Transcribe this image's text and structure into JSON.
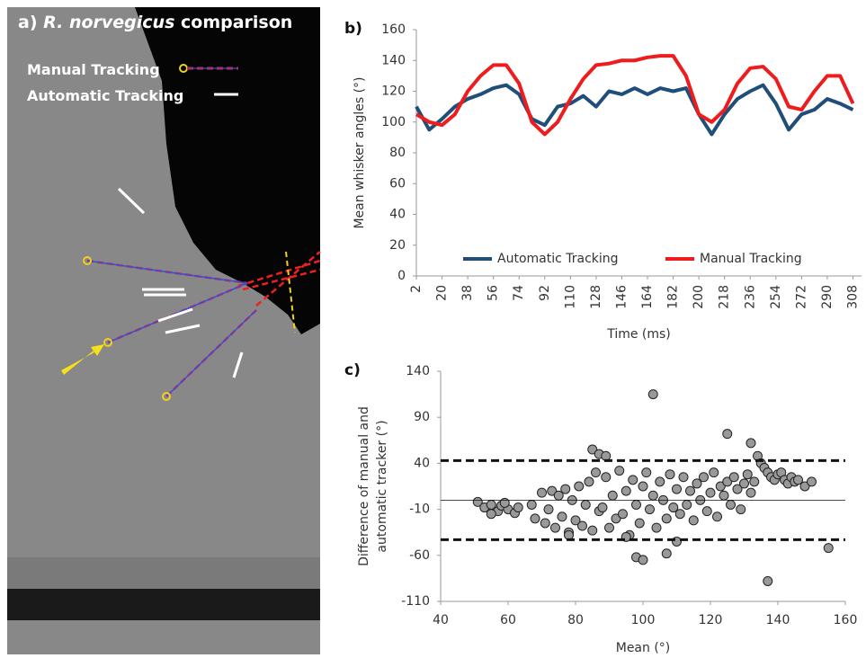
{
  "panel_a": {
    "label": "a)",
    "species": "R. norvegicus",
    "title_rest": "comparison",
    "legend": [
      "Manual Tracking",
      "Automatic Tracking"
    ]
  },
  "chart_data": [
    {
      "type": "line",
      "label": "b)",
      "x_label": "Time (ms)",
      "y_label": "Mean whisker angles (°)",
      "x": [
        2,
        11,
        20,
        29,
        38,
        47,
        56,
        65,
        74,
        83,
        92,
        101,
        110,
        119,
        128,
        137,
        146,
        155,
        164,
        173,
        182,
        191,
        200,
        209,
        218,
        227,
        236,
        245,
        254,
        263,
        272,
        281,
        290,
        299,
        308
      ],
      "series": [
        {
          "name": "Automatic Tracking",
          "color": "#1f4e79",
          "values": [
            110,
            95,
            102,
            110,
            115,
            118,
            122,
            124,
            118,
            102,
            98,
            110,
            112,
            117,
            110,
            120,
            118,
            122,
            118,
            122,
            120,
            122,
            105,
            92,
            105,
            115,
            120,
            124,
            112,
            95,
            105,
            108,
            115,
            112,
            108
          ]
        },
        {
          "name": "Manual Tracking",
          "color": "#ee1c1c",
          "values": [
            105,
            100,
            98,
            105,
            120,
            130,
            137,
            137,
            125,
            100,
            92,
            100,
            115,
            128,
            137,
            138,
            140,
            140,
            142,
            143,
            143,
            130,
            105,
            100,
            108,
            125,
            135,
            136,
            128,
            110,
            108,
            120,
            130,
            130,
            112
          ]
        }
      ],
      "xlim": [
        2,
        314
      ],
      "xticks": [
        2,
        20,
        38,
        56,
        74,
        92,
        110,
        128,
        146,
        164,
        182,
        200,
        218,
        236,
        254,
        272,
        290,
        308
      ],
      "ylim": [
        0,
        160
      ],
      "yticks": [
        0,
        20,
        40,
        60,
        80,
        100,
        120,
        140,
        160
      ],
      "legend": "bottom"
    },
    {
      "type": "scatter",
      "label": "c)",
      "x_label": "Mean (°)",
      "y_label": [
        "Difference of manual and",
        "automatic tracker (°)"
      ],
      "x": [
        51,
        53,
        55,
        57,
        58,
        60,
        62,
        63,
        55,
        59,
        67,
        68,
        70,
        71,
        72,
        73,
        74,
        75,
        76,
        77,
        78,
        79,
        80,
        81,
        82,
        83,
        84,
        85,
        86,
        87,
        88,
        89,
        90,
        91,
        92,
        93,
        94,
        95,
        96,
        97,
        98,
        99,
        100,
        101,
        102,
        103,
        104,
        105,
        106,
        107,
        108,
        109,
        110,
        111,
        112,
        113,
        114,
        115,
        116,
        117,
        118,
        119,
        120,
        121,
        122,
        123,
        124,
        125,
        126,
        127,
        128,
        129,
        130,
        131,
        132,
        133,
        134,
        135,
        136,
        137,
        138,
        139,
        140,
        141,
        142,
        143,
        144,
        145,
        146,
        148,
        150,
        85,
        87,
        89,
        103,
        125,
        132,
        137,
        155,
        98,
        100,
        107,
        110,
        95,
        78
      ],
      "values": [
        -2,
        -8,
        -5,
        -12,
        -6,
        -10,
        -14,
        -8,
        -15,
        -3,
        -5,
        -20,
        8,
        -25,
        -10,
        10,
        -30,
        5,
        -18,
        12,
        -35,
        0,
        -22,
        15,
        -28,
        -5,
        20,
        -33,
        30,
        -12,
        -8,
        25,
        -30,
        5,
        -20,
        32,
        -15,
        10,
        -38,
        22,
        -5,
        -25,
        15,
        30,
        -10,
        5,
        -30,
        20,
        0,
        -20,
        28,
        -8,
        12,
        -15,
        25,
        -5,
        10,
        -22,
        18,
        0,
        25,
        -12,
        8,
        30,
        -18,
        15,
        5,
        20,
        -5,
        25,
        12,
        -10,
        18,
        28,
        8,
        20,
        48,
        40,
        35,
        30,
        25,
        22,
        28,
        30,
        22,
        18,
        25,
        20,
        22,
        15,
        20,
        55,
        50,
        48,
        115,
        72,
        62,
        -88,
        -52,
        -62,
        -65,
        -58,
        -45,
        -40,
        -38
      ],
      "color": "#999999",
      "reference_lines": [
        {
          "value": 43,
          "style": "dashed"
        },
        {
          "value": 0,
          "style": "solid"
        },
        {
          "value": -43,
          "style": "dashed"
        }
      ],
      "xlim": [
        40,
        160
      ],
      "xticks": [
        40,
        60,
        80,
        100,
        120,
        140,
        160
      ],
      "ylim": [
        -110,
        140
      ],
      "yticks": [
        -110,
        -60,
        -10,
        40,
        90,
        140
      ]
    }
  ]
}
